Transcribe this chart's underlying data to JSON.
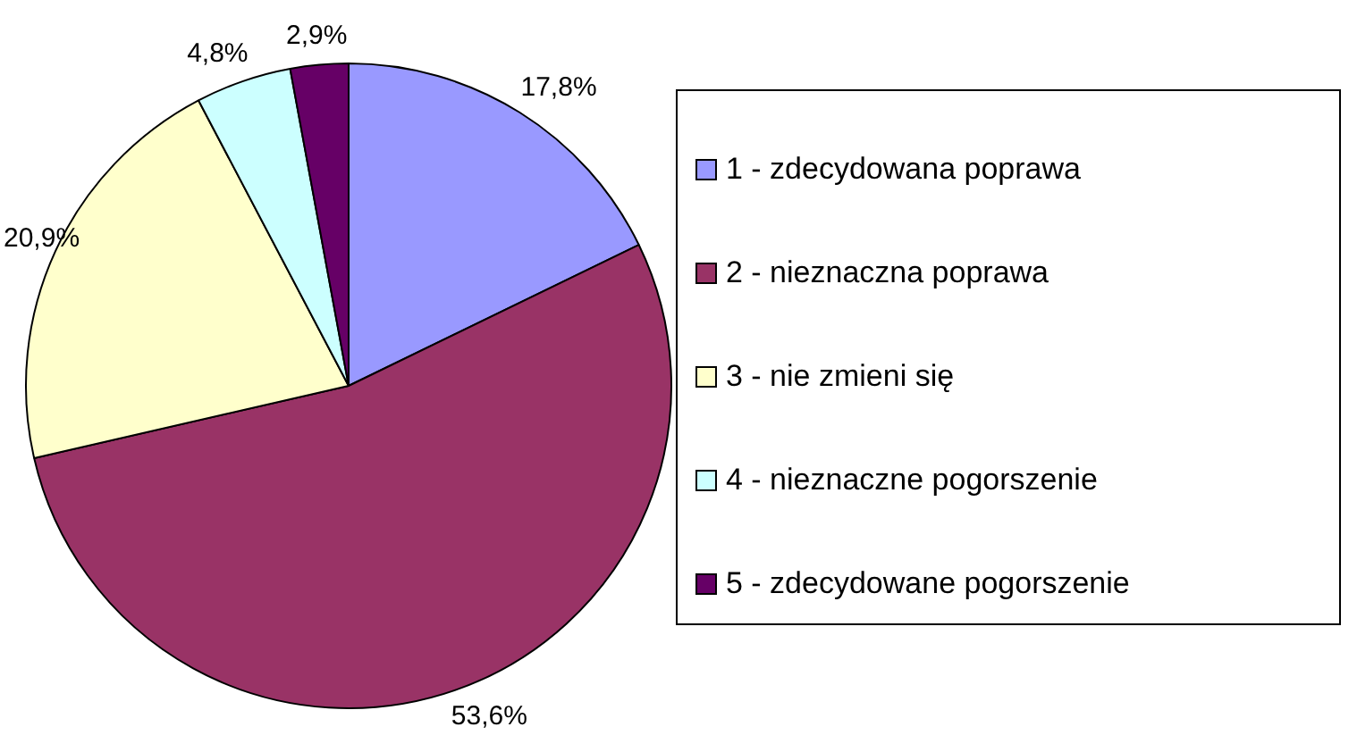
{
  "chart_data": {
    "type": "pie",
    "categories": [
      "1 - zdecydowana poprawa",
      "2 - nieznaczna poprawa",
      "3 - nie zmieni się",
      "4 - nieznaczne pogorszenie",
      "5 - zdecydowane pogorszenie"
    ],
    "values": [
      17.8,
      53.6,
      20.9,
      4.8,
      2.9
    ],
    "colors": [
      "#9999ff",
      "#993366",
      "#ffffcc",
      "#ccffff",
      "#660066"
    ],
    "value_labels": [
      "17,8%",
      "53,6%",
      "20,9%",
      "4,8%",
      "2,9%"
    ],
    "legend": "right"
  }
}
